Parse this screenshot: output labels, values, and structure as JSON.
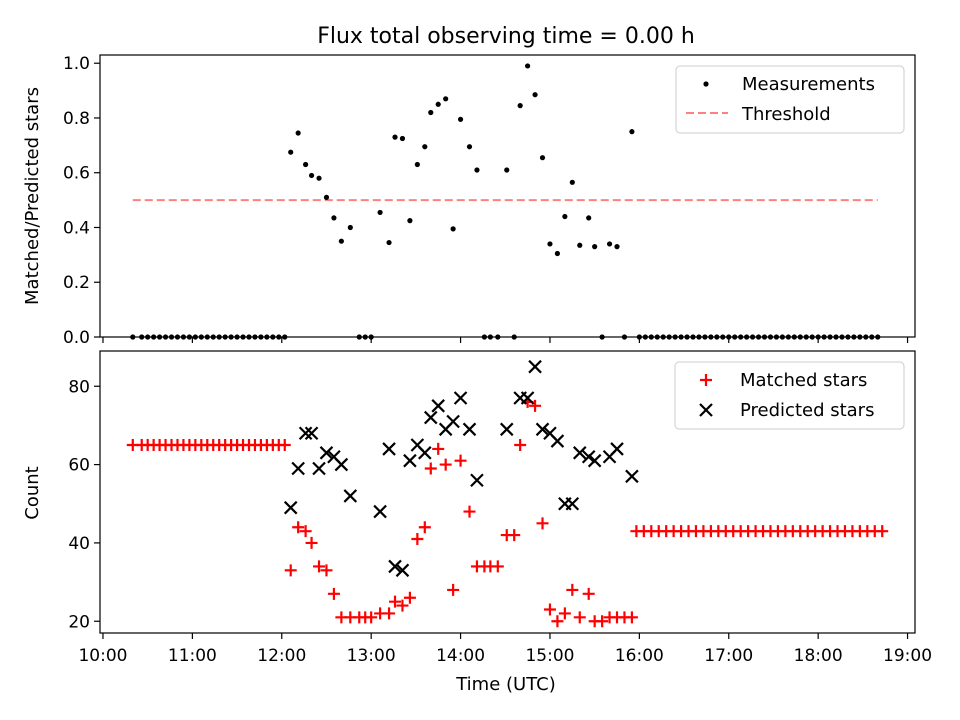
{
  "figure_title": "Flux total observing time = 0.00 h",
  "x_label": "Time (UTC)",
  "x_ticks": [
    "10:00",
    "11:00",
    "12:00",
    "13:00",
    "14:00",
    "15:00",
    "16:00",
    "17:00",
    "18:00",
    "19:00"
  ],
  "colors": {
    "measurements": "#000000",
    "threshold": "#ff8080",
    "matched": "#ff0000",
    "predicted": "#000000"
  },
  "chart_data": [
    {
      "type": "scatter",
      "title": "Flux total observing time = 0.00 h",
      "xlabel": "",
      "ylabel": "Matched/Predicted stars",
      "xlim": [
        "10:00",
        "19:00"
      ],
      "ylim": [
        0,
        1.05
      ],
      "yticks": [
        "0.0",
        "0.2",
        "0.4",
        "0.6",
        "0.8",
        "1.0"
      ],
      "legend": {
        "placement": "top-right",
        "entries": [
          "Measurements",
          "Threshold"
        ]
      },
      "threshold": {
        "name": "Threshold",
        "value": 0.5,
        "x_range": [
          "10:20",
          "18:40"
        ],
        "style": "dashed"
      },
      "series": [
        {
          "name": "Measurements",
          "marker": "dot",
          "points": [
            [
              "10:20",
              0
            ],
            [
              "10:26",
              0
            ],
            [
              "10:30",
              0
            ],
            [
              "10:34",
              0
            ],
            [
              "10:38",
              0
            ],
            [
              "10:42",
              0
            ],
            [
              "10:46",
              0
            ],
            [
              "10:50",
              0
            ],
            [
              "10:54",
              0
            ],
            [
              "10:58",
              0
            ],
            [
              "11:02",
              0
            ],
            [
              "11:06",
              0
            ],
            [
              "11:10",
              0
            ],
            [
              "11:14",
              0
            ],
            [
              "11:18",
              0
            ],
            [
              "11:22",
              0
            ],
            [
              "11:26",
              0
            ],
            [
              "11:30",
              0
            ],
            [
              "11:34",
              0
            ],
            [
              "11:38",
              0
            ],
            [
              "11:42",
              0
            ],
            [
              "11:46",
              0
            ],
            [
              "11:50",
              0
            ],
            [
              "11:54",
              0
            ],
            [
              "11:58",
              0
            ],
            [
              "12:02",
              0
            ],
            [
              "12:06",
              0.675
            ],
            [
              "12:11",
              0.745
            ],
            [
              "12:16",
              0.63
            ],
            [
              "12:20",
              0.59
            ],
            [
              "12:25",
              0.58
            ],
            [
              "12:30",
              0.51
            ],
            [
              "12:35",
              0.435
            ],
            [
              "12:40",
              0.35
            ],
            [
              "12:46",
              0.4
            ],
            [
              "12:52",
              0
            ],
            [
              "12:56",
              0
            ],
            [
              "13:00",
              0
            ],
            [
              "13:06",
              0.455
            ],
            [
              "13:12",
              0.345
            ],
            [
              "13:16",
              0.73
            ],
            [
              "13:21",
              0.725
            ],
            [
              "13:26",
              0.425
            ],
            [
              "13:31",
              0.63
            ],
            [
              "13:36",
              0.695
            ],
            [
              "13:40",
              0.82
            ],
            [
              "13:45",
              0.85
            ],
            [
              "13:50",
              0.87
            ],
            [
              "13:55",
              0.395
            ],
            [
              "14:00",
              0.795
            ],
            [
              "14:06",
              0.695
            ],
            [
              "14:11",
              0.61
            ],
            [
              "14:16",
              0
            ],
            [
              "14:20",
              0
            ],
            [
              "14:25",
              0
            ],
            [
              "14:31",
              0.61
            ],
            [
              "14:36",
              0
            ],
            [
              "14:40",
              0.845
            ],
            [
              "14:45",
              0.99
            ],
            [
              "14:50",
              0.885
            ],
            [
              "14:55",
              0.655
            ],
            [
              "15:00",
              0.34
            ],
            [
              "15:05",
              0.305
            ],
            [
              "15:10",
              0.44
            ],
            [
              "15:15",
              0.565
            ],
            [
              "15:20",
              0.335
            ],
            [
              "15:26",
              0.435
            ],
            [
              "15:30",
              0.33
            ],
            [
              "15:35",
              0
            ],
            [
              "15:40",
              0.34
            ],
            [
              "15:45",
              0.33
            ],
            [
              "15:50",
              0
            ],
            [
              "15:55",
              0.75
            ],
            [
              "16:00",
              0
            ],
            [
              "16:04",
              0
            ],
            [
              "16:08",
              0
            ],
            [
              "16:12",
              0
            ],
            [
              "16:16",
              0
            ],
            [
              "16:20",
              0
            ],
            [
              "16:24",
              0
            ],
            [
              "16:28",
              0
            ],
            [
              "16:32",
              0
            ],
            [
              "16:36",
              0
            ],
            [
              "16:40",
              0
            ],
            [
              "16:44",
              0
            ],
            [
              "16:48",
              0
            ],
            [
              "16:52",
              0
            ],
            [
              "16:56",
              0
            ],
            [
              "17:00",
              0
            ],
            [
              "17:04",
              0
            ],
            [
              "17:08",
              0
            ],
            [
              "17:12",
              0
            ],
            [
              "17:16",
              0
            ],
            [
              "17:20",
              0
            ],
            [
              "17:24",
              0
            ],
            [
              "17:28",
              0
            ],
            [
              "17:32",
              0
            ],
            [
              "17:36",
              0
            ],
            [
              "17:40",
              0
            ],
            [
              "17:44",
              0
            ],
            [
              "17:48",
              0
            ],
            [
              "17:52",
              0
            ],
            [
              "17:56",
              0
            ],
            [
              "18:00",
              0
            ],
            [
              "18:04",
              0
            ],
            [
              "18:08",
              0
            ],
            [
              "18:12",
              0
            ],
            [
              "18:16",
              0
            ],
            [
              "18:20",
              0
            ],
            [
              "18:24",
              0
            ],
            [
              "18:28",
              0
            ],
            [
              "18:32",
              0
            ],
            [
              "18:36",
              0
            ],
            [
              "18:40",
              0
            ]
          ]
        }
      ]
    },
    {
      "type": "scatter",
      "title": "",
      "xlabel": "Time (UTC)",
      "ylabel": "Count",
      "xlim": [
        "10:00",
        "19:00"
      ],
      "ylim": [
        17,
        89
      ],
      "yticks": [
        "20",
        "40",
        "60",
        "80"
      ],
      "legend": {
        "placement": "top-right",
        "entries": [
          "Matched stars",
          "Predicted stars"
        ]
      },
      "series": [
        {
          "name": "Matched stars",
          "marker": "plus",
          "points": [
            [
              "10:20",
              65
            ],
            [
              "10:26",
              65
            ],
            [
              "10:30",
              65
            ],
            [
              "10:34",
              65
            ],
            [
              "10:38",
              65
            ],
            [
              "10:42",
              65
            ],
            [
              "10:46",
              65
            ],
            [
              "10:50",
              65
            ],
            [
              "10:54",
              65
            ],
            [
              "10:58",
              65
            ],
            [
              "11:02",
              65
            ],
            [
              "11:06",
              65
            ],
            [
              "11:10",
              65
            ],
            [
              "11:14",
              65
            ],
            [
              "11:18",
              65
            ],
            [
              "11:22",
              65
            ],
            [
              "11:26",
              65
            ],
            [
              "11:30",
              65
            ],
            [
              "11:34",
              65
            ],
            [
              "11:38",
              65
            ],
            [
              "11:42",
              65
            ],
            [
              "11:46",
              65
            ],
            [
              "11:50",
              65
            ],
            [
              "11:54",
              65
            ],
            [
              "11:58",
              65
            ],
            [
              "12:02",
              65
            ],
            [
              "12:06",
              33
            ],
            [
              "12:11",
              44
            ],
            [
              "12:16",
              43
            ],
            [
              "12:20",
              40
            ],
            [
              "12:25",
              34
            ],
            [
              "12:30",
              33
            ],
            [
              "12:35",
              27
            ],
            [
              "12:40",
              21
            ],
            [
              "12:46",
              21
            ],
            [
              "12:52",
              21
            ],
            [
              "12:56",
              21
            ],
            [
              "13:00",
              21
            ],
            [
              "13:06",
              22
            ],
            [
              "13:12",
              22
            ],
            [
              "13:16",
              25
            ],
            [
              "13:21",
              24
            ],
            [
              "13:26",
              26
            ],
            [
              "13:31",
              41
            ],
            [
              "13:36",
              44
            ],
            [
              "13:40",
              59
            ],
            [
              "13:45",
              64
            ],
            [
              "13:50",
              60
            ],
            [
              "13:55",
              28
            ],
            [
              "14:00",
              61
            ],
            [
              "14:06",
              48
            ],
            [
              "14:11",
              34
            ],
            [
              "14:16",
              34
            ],
            [
              "14:20",
              34
            ],
            [
              "14:25",
              34
            ],
            [
              "14:31",
              42
            ],
            [
              "14:36",
              42
            ],
            [
              "14:40",
              65
            ],
            [
              "14:45",
              76
            ],
            [
              "14:50",
              75
            ],
            [
              "14:55",
              45
            ],
            [
              "15:00",
              23
            ],
            [
              "15:05",
              20
            ],
            [
              "15:10",
              22
            ],
            [
              "15:15",
              28
            ],
            [
              "15:20",
              21
            ],
            [
              "15:26",
              27
            ],
            [
              "15:30",
              20
            ],
            [
              "15:35",
              20
            ],
            [
              "15:40",
              21
            ],
            [
              "15:45",
              21
            ],
            [
              "15:50",
              21
            ],
            [
              "15:55",
              21
            ],
            [
              "15:58",
              43
            ],
            [
              "16:03",
              43
            ],
            [
              "16:08",
              43
            ],
            [
              "16:13",
              43
            ],
            [
              "16:18",
              43
            ],
            [
              "16:23",
              43
            ],
            [
              "16:28",
              43
            ],
            [
              "16:33",
              43
            ],
            [
              "16:38",
              43
            ],
            [
              "16:43",
              43
            ],
            [
              "16:48",
              43
            ],
            [
              "16:53",
              43
            ],
            [
              "16:58",
              43
            ],
            [
              "17:03",
              43
            ],
            [
              "17:08",
              43
            ],
            [
              "17:13",
              43
            ],
            [
              "17:18",
              43
            ],
            [
              "17:23",
              43
            ],
            [
              "17:28",
              43
            ],
            [
              "17:33",
              43
            ],
            [
              "17:38",
              43
            ],
            [
              "17:43",
              43
            ],
            [
              "17:48",
              43
            ],
            [
              "17:53",
              43
            ],
            [
              "17:58",
              43
            ],
            [
              "18:03",
              43
            ],
            [
              "18:08",
              43
            ],
            [
              "18:13",
              43
            ],
            [
              "18:18",
              43
            ],
            [
              "18:23",
              43
            ],
            [
              "18:28",
              43
            ],
            [
              "18:33",
              43
            ],
            [
              "18:38",
              43
            ],
            [
              "18:43",
              43
            ]
          ]
        },
        {
          "name": "Predicted stars",
          "marker": "x",
          "points": [
            [
              "12:06",
              49
            ],
            [
              "12:11",
              59
            ],
            [
              "12:16",
              68
            ],
            [
              "12:20",
              68
            ],
            [
              "12:25",
              59
            ],
            [
              "12:30",
              63
            ],
            [
              "12:35",
              62
            ],
            [
              "12:40",
              60
            ],
            [
              "12:46",
              52
            ],
            [
              "13:06",
              48
            ],
            [
              "13:12",
              64
            ],
            [
              "13:16",
              34
            ],
            [
              "13:21",
              33
            ],
            [
              "13:26",
              61
            ],
            [
              "13:31",
              65
            ],
            [
              "13:36",
              63
            ],
            [
              "13:40",
              72
            ],
            [
              "13:45",
              75
            ],
            [
              "13:50",
              69
            ],
            [
              "13:55",
              71
            ],
            [
              "14:00",
              77
            ],
            [
              "14:06",
              69
            ],
            [
              "14:11",
              56
            ],
            [
              "14:31",
              69
            ],
            [
              "14:40",
              77
            ],
            [
              "14:45",
              77
            ],
            [
              "14:50",
              85
            ],
            [
              "14:55",
              69
            ],
            [
              "15:00",
              68
            ],
            [
              "15:05",
              66
            ],
            [
              "15:10",
              50
            ],
            [
              "15:15",
              50
            ],
            [
              "15:20",
              63
            ],
            [
              "15:26",
              62
            ],
            [
              "15:30",
              61
            ],
            [
              "15:40",
              62
            ],
            [
              "15:45",
              64
            ],
            [
              "15:55",
              57
            ]
          ]
        }
      ]
    }
  ]
}
